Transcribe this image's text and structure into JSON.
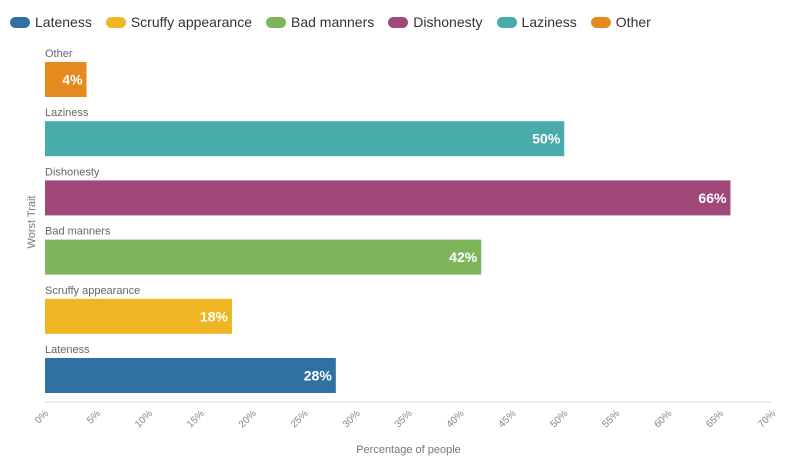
{
  "chart_data": {
    "type": "bar",
    "orientation": "horizontal",
    "categories": [
      "Other",
      "Laziness",
      "Dishonesty",
      "Bad manners",
      "Scruffy appearance",
      "Lateness"
    ],
    "values": [
      4,
      50,
      66,
      42,
      18,
      28
    ],
    "value_labels": [
      "4%",
      "50%",
      "66%",
      "42%",
      "18%",
      "28%"
    ],
    "colors": [
      "#e58a1f",
      "#4aabab",
      "#a04878",
      "#7fb55a",
      "#efb522",
      "#2f71a0"
    ],
    "xlabel": "Percentage of people",
    "ylabel": "Worst Trait",
    "xlim": [
      0,
      70
    ],
    "x_ticks": [
      "0%",
      "5%",
      "10%",
      "15%",
      "20%",
      "25%",
      "30%",
      "35%",
      "40%",
      "45%",
      "50%",
      "55%",
      "60%",
      "65%",
      "70%"
    ],
    "grid": false,
    "legend": {
      "position": "top-left",
      "items": [
        {
          "label": "Lateness",
          "color": "#2f71a0"
        },
        {
          "label": "Scruffy appearance",
          "color": "#efb522"
        },
        {
          "label": "Bad manners",
          "color": "#7fb55a"
        },
        {
          "label": "Dishonesty",
          "color": "#a04878"
        },
        {
          "label": "Laziness",
          "color": "#4aabab"
        },
        {
          "label": "Other",
          "color": "#e58a1f"
        }
      ]
    }
  }
}
